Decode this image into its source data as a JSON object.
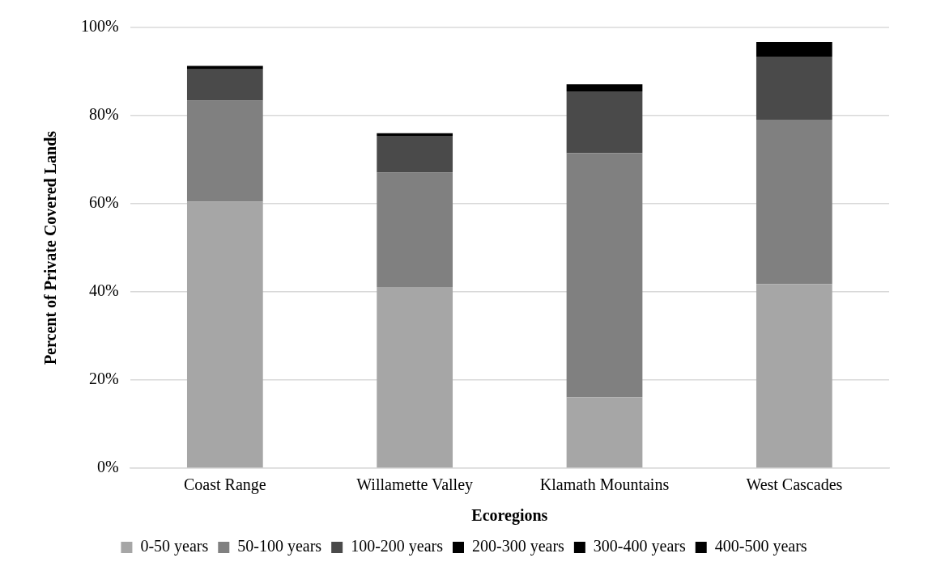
{
  "chart_data": {
    "type": "bar",
    "stacked": true,
    "xlabel": "Ecoregions",
    "ylabel": "Percent of Private Covered Lands",
    "categories": [
      "Coast Range",
      "Willamette Valley",
      "Klamath Mountains",
      "West Cascades"
    ],
    "series": [
      {
        "name": "0-50 years",
        "color": "#a6a6a6",
        "values": [
          60.5,
          41.1,
          16.1,
          41.8
        ]
      },
      {
        "name": "50-100 years",
        "color": "#808080",
        "values": [
          22.9,
          26.0,
          55.4,
          37.3
        ]
      },
      {
        "name": "100-200 years",
        "color": "#4a4a4a",
        "values": [
          7.1,
          8.3,
          14.0,
          14.3
        ]
      },
      {
        "name": "200-300 years",
        "color": "#000000",
        "values": [
          0.8,
          0.6,
          1.6,
          3.3
        ]
      },
      {
        "name": "300-400 years",
        "color": "#000000",
        "values": [
          0,
          0,
          0,
          0
        ]
      },
      {
        "name": "400-500 years",
        "color": "#000000",
        "values": [
          0,
          0,
          0,
          0
        ]
      }
    ],
    "ylim": [
      0,
      100
    ],
    "yticks": [
      {
        "value": 0,
        "label": "0%"
      },
      {
        "value": 20,
        "label": "20%"
      },
      {
        "value": 40,
        "label": "40%"
      },
      {
        "value": 60,
        "label": "60%"
      },
      {
        "value": 80,
        "label": "80%"
      },
      {
        "value": 100,
        "label": "100%"
      }
    ],
    "grid": "y",
    "legend": "bottom"
  }
}
